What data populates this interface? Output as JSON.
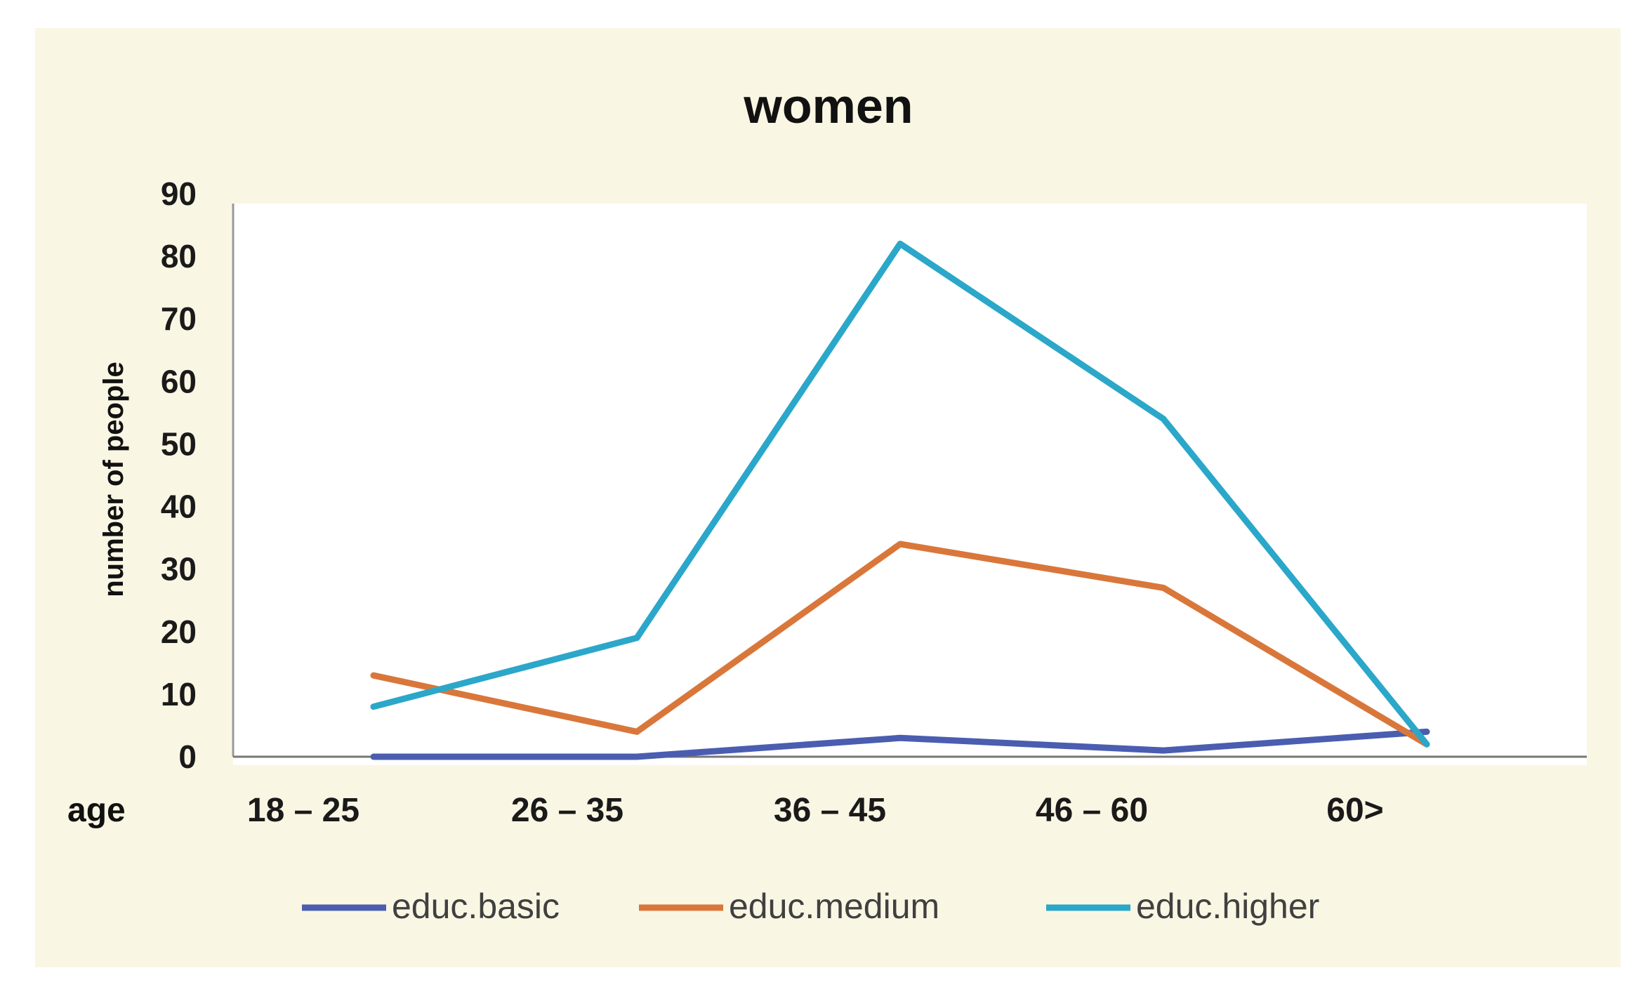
{
  "chart_data": {
    "type": "line",
    "title": "women",
    "xlabel": "age",
    "ylabel": "number of people",
    "categories": [
      "18 – 25",
      "26 – 35",
      "36 – 45",
      "46 – 60",
      "60>"
    ],
    "ylim": [
      0,
      90
    ],
    "yticks": [
      "0",
      "10",
      "20",
      "30",
      "40",
      "50",
      "60",
      "70",
      "80",
      "90"
    ],
    "grid": false,
    "legend_position": "bottom",
    "series": [
      {
        "name": "educ.basic",
        "color": "#4a5db0",
        "values": [
          0,
          0,
          3,
          1,
          4
        ]
      },
      {
        "name": "educ.medium",
        "color": "#d9773b",
        "values": [
          13,
          4,
          34,
          27,
          2
        ]
      },
      {
        "name": "educ.higher",
        "color": "#2ba7c9",
        "values": [
          8,
          19,
          82,
          54,
          2
        ]
      }
    ],
    "background": "#faf6e4",
    "plot_background": "#ffffff"
  }
}
